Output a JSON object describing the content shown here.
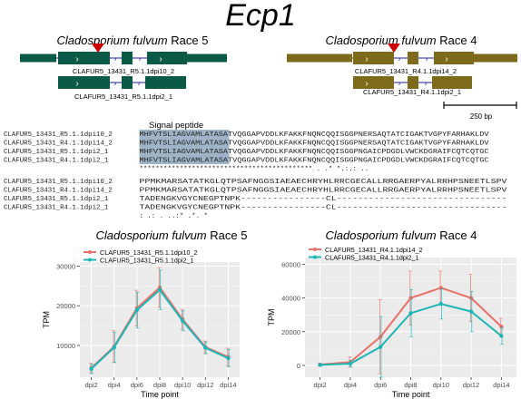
{
  "figure_title": "Ecp1",
  "colors": {
    "race5_gene": "#0b5a46",
    "race4_gene": "#7d6a1a",
    "intron_line": "#1a1aa0",
    "marker_red": "#cc0000",
    "signal_highlight": "#9fb4c8",
    "line_red": "#e8716a",
    "line_teal": "#1fb5b5",
    "panel_bg": "#ebebeb",
    "grid": "#ffffff"
  },
  "gene_models": {
    "race5": {
      "organism": "Cladosporium fulvum",
      "race_label": "Race 5",
      "transcript_1": "CLAFUR5_13431_R5.1.1dpi10_2",
      "transcript_2": "CLAFUR5_13431_R5.1.1dpi2_1"
    },
    "race4": {
      "organism": "Cladosporium fulvum",
      "race_label": "Race 4",
      "transcript_1": "CLAFUR5_13431_R4.1.1dpi14_2",
      "transcript_2": "CLAFUR5_13431_R4.1.1dpi2_1"
    },
    "scale_bar": "250 bp"
  },
  "alignment": {
    "signal_peptide_label": "Signal peptide",
    "block1": [
      {
        "name": "CLAFUR5_13431_R5.1.1dpi10_2",
        "signal": "MHFVTSLIAGVAMLATASA",
        "rest": "TVQGGAPVDDLKFAKKFNQNCQQISGGPNERSAQTATCIGAKTVGPYFARHAKLDV"
      },
      {
        "name": "CLAFUR5_13431_R4.1.1dpi14_2",
        "signal": "MHFVTSLIAGVAMLATASA",
        "rest": "TVQGGAPVDDLKFAKKFNQNCQQISGGPNERSAQTATCIGAKTVGPYFARHAKLDV"
      },
      {
        "name": "CLAFUR5_13431_R5.1.1dpi2_1",
        "signal": "MHFVTSLIAGVAMLATASA",
        "rest": "TVQGGAPVDDLKFAKKFNQNCQQISGGPNGAICPDGDLVWCKDGRAIFCQTCQTGC"
      },
      {
        "name": "CLAFUR5_13431_R4.1.1dpi2_1",
        "signal": "MHFVTSLIAGVAMLATASA",
        "rest": "TVQGGAPVDDLKFAKKFNQNCQQISGGPNGAICPDGDLVWCKDGRAIFCQTCQTGC"
      }
    ],
    "block1_consensus": "*******************************************     .     .*   *.:.: ..",
    "block2": [
      {
        "name": "CLAFUR5_13431_R5.1.1dpi10_2",
        "seq": "PPMKMARSATATKGLQTPSAFNGGSIAEAECHRYHLRRCGECALLRRGAERPYALRRHPSNEETLSPV"
      },
      {
        "name": "CLAFUR5_13431_R4.1.1dpi14_2",
        "seq": "PPMKMARSATATKGLQTPSAFNGGSIAEAECHRYHLRRCGECALLRRGAERPYALRRHPSNEETLSPV"
      },
      {
        "name": "CLAFUR5_13431_R5.1.1dpi2_1",
        "seq": "TADENGKVGYCNEGPTNPK----------------CL--------------------------------"
      },
      {
        "name": "CLAFUR5_13431_R4.1.1dpi2_1",
        "seq": "TADENGKVGYCNEGPTNPK----------------CL--------------------------------"
      }
    ],
    "block2_consensus": "  : .: . ..:*  .*.             *"
  },
  "chart_data": [
    {
      "type": "line",
      "title_italic": "Cladosporium fulvum",
      "title_race": "Race 5",
      "xlabel": "Time point",
      "ylabel": "TPM",
      "categories": [
        "dpi2",
        "dpi4",
        "dpi6",
        "dpi8",
        "dpi10",
        "dpi12",
        "dpi14"
      ],
      "ylim": [
        2000,
        31000
      ],
      "yticks": [
        10000,
        20000,
        30000
      ],
      "ytick_labels": [
        "10000",
        "20000",
        "30000"
      ],
      "series": [
        {
          "name": "CLAFUR5_13431_R5.1.1dpi10_2",
          "color": "#e8716a",
          "values": [
            4300,
            9700,
            19400,
            24600,
            16600,
            9600,
            7100
          ],
          "err": [
            1200,
            4000,
            4500,
            5000,
            2500,
            1500,
            2200
          ]
        },
        {
          "name": "CLAFUR5_13431_R5.1.1dpi2_1",
          "color": "#1fb5b5",
          "values": [
            4100,
            9500,
            18900,
            24000,
            16200,
            9400,
            6800
          ],
          "err": [
            1200,
            3800,
            4500,
            5000,
            2500,
            1500,
            2200
          ]
        }
      ]
    },
    {
      "type": "line",
      "title_italic": "Cladosporium fulvum",
      "title_race": "Race 4",
      "xlabel": "Time point",
      "ylabel": "TPM",
      "categories": [
        "dpi2",
        "dpi4",
        "dpi6",
        "dpi8",
        "dpi10",
        "dpi12",
        "dpi14"
      ],
      "ylim": [
        -7000,
        64000
      ],
      "yticks": [
        0,
        20000,
        40000,
        60000
      ],
      "ytick_labels": [
        "0",
        "20000",
        "40000",
        "60000"
      ],
      "series": [
        {
          "name": "CLAFUR5_13431_R4.1.1dpi14_2",
          "color": "#e8716a",
          "values": [
            500,
            2000,
            17000,
            40000,
            46000,
            40000,
            23000
          ],
          "err": [
            800,
            3000,
            22000,
            16000,
            10000,
            14000,
            5000
          ]
        },
        {
          "name": "CLAFUR5_13431_R4.1.1dpi2_1",
          "color": "#1fb5b5",
          "values": [
            300,
            1000,
            11000,
            31000,
            36500,
            32000,
            17500
          ],
          "err": [
            600,
            2000,
            18000,
            14000,
            9000,
            12000,
            5000
          ]
        }
      ]
    }
  ]
}
